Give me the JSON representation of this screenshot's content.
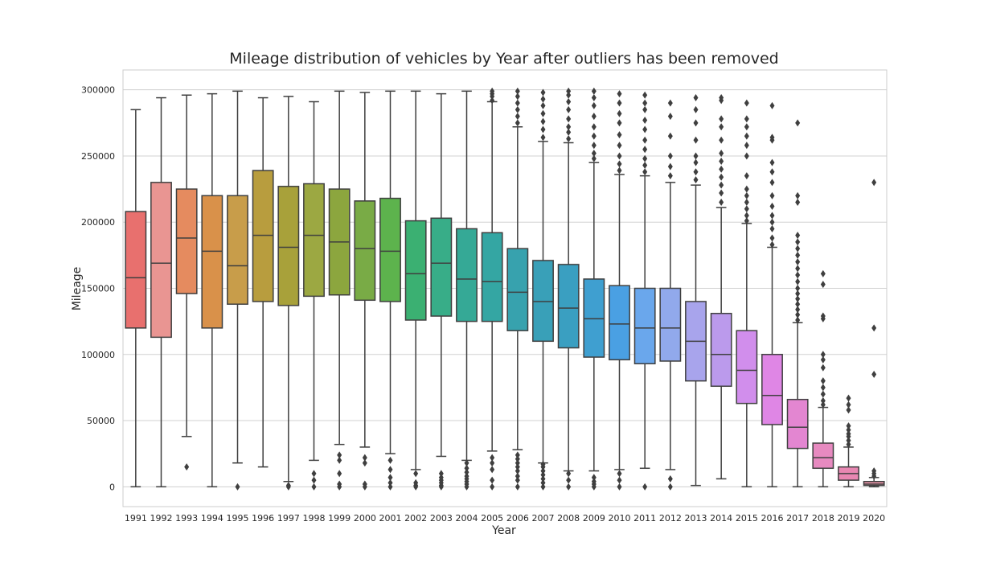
{
  "chart_data": {
    "type": "box",
    "title": "Mileage distribution of vehicles by Year after outliers has been removed",
    "xlabel": "Year",
    "ylabel": "Mileage",
    "ylim": [
      -15000,
      315000
    ],
    "yticks": [
      0,
      50000,
      100000,
      150000,
      200000,
      250000,
      300000
    ],
    "grid": "horizontal",
    "categories": [
      "1991",
      "1992",
      "1993",
      "1994",
      "1995",
      "1996",
      "1997",
      "1998",
      "1999",
      "2000",
      "2001",
      "2002",
      "2003",
      "2004",
      "2005",
      "2006",
      "2007",
      "2008",
      "2009",
      "2010",
      "2011",
      "2012",
      "2013",
      "2014",
      "2015",
      "2016",
      "2017",
      "2018",
      "2019",
      "2020"
    ],
    "colors": [
      "#e8706e",
      "#e99592",
      "#e58b5f",
      "#d9914a",
      "#c89d4a",
      "#b89d3e",
      "#a8a13a",
      "#9ca842",
      "#8ca63e",
      "#79ab46",
      "#5db34d",
      "#3bb072",
      "#38ad88",
      "#35a996",
      "#34a6a3",
      "#37a2ae",
      "#39a0b8",
      "#3a9fc1",
      "#3f9fd0",
      "#4aa0e3",
      "#6aa7ec",
      "#91a9ec",
      "#a8a4ec",
      "#bb9aec",
      "#d18eec",
      "#df86e5",
      "#e386d1",
      "#e78ac0",
      "#e887b2",
      "#e894a8"
    ],
    "boxes": [
      {
        "year": "1991",
        "whisker_low": 0,
        "q1": 120000,
        "median": 158000,
        "q3": 208000,
        "whisker_high": 285000,
        "outliers": []
      },
      {
        "year": "1992",
        "whisker_low": 0,
        "q1": 113000,
        "median": 169000,
        "q3": 230000,
        "whisker_high": 294000,
        "outliers": []
      },
      {
        "year": "1993",
        "whisker_low": 38000,
        "q1": 146000,
        "median": 188000,
        "q3": 225000,
        "whisker_high": 296000,
        "outliers": [
          15000
        ]
      },
      {
        "year": "1994",
        "whisker_low": 0,
        "q1": 120000,
        "median": 178000,
        "q3": 220000,
        "whisker_high": 297000,
        "outliers": []
      },
      {
        "year": "1995",
        "whisker_low": 18000,
        "q1": 138000,
        "median": 167000,
        "q3": 220000,
        "whisker_high": 299000,
        "outliers": [
          0
        ]
      },
      {
        "year": "1996",
        "whisker_low": 15000,
        "q1": 140000,
        "median": 190000,
        "q3": 239000,
        "whisker_high": 294000,
        "outliers": []
      },
      {
        "year": "1997",
        "whisker_low": 4000,
        "q1": 137000,
        "median": 181000,
        "q3": 227000,
        "whisker_high": 295000,
        "outliers": [
          0,
          1000
        ]
      },
      {
        "year": "1998",
        "whisker_low": 20000,
        "q1": 144000,
        "median": 190000,
        "q3": 229000,
        "whisker_high": 291000,
        "outliers": [
          0,
          5000,
          10000
        ]
      },
      {
        "year": "1999",
        "whisker_low": 32000,
        "q1": 145000,
        "median": 185000,
        "q3": 225000,
        "whisker_high": 299000,
        "outliers": [
          0,
          2000,
          10000,
          20000,
          24000
        ]
      },
      {
        "year": "2000",
        "whisker_low": 30000,
        "q1": 141000,
        "median": 180000,
        "q3": 216000,
        "whisker_high": 298000,
        "outliers": [
          0,
          2000,
          18000,
          22000
        ]
      },
      {
        "year": "2001",
        "whisker_low": 25000,
        "q1": 140000,
        "median": 178000,
        "q3": 218000,
        "whisker_high": 299000,
        "outliers": [
          0,
          3000,
          7000,
          13000,
          20000
        ]
      },
      {
        "year": "2002",
        "whisker_low": 13000,
        "q1": 126000,
        "median": 161000,
        "q3": 201000,
        "whisker_high": 299000,
        "outliers": [
          0,
          1000,
          3000,
          10000
        ]
      },
      {
        "year": "2003",
        "whisker_low": 23000,
        "q1": 129000,
        "median": 169000,
        "q3": 203000,
        "whisker_high": 297000,
        "outliers": [
          0,
          1000,
          3000,
          5000,
          7000,
          10000
        ]
      },
      {
        "year": "2004",
        "whisker_low": 20000,
        "q1": 125000,
        "median": 157000,
        "q3": 195000,
        "whisker_high": 299000,
        "outliers": [
          0,
          2000,
          4000,
          6000,
          8000,
          11000,
          14000,
          18000
        ]
      },
      {
        "year": "2005",
        "whisker_low": 27000,
        "q1": 125000,
        "median": 155000,
        "q3": 192000,
        "whisker_high": 291000,
        "outliers": [
          0,
          5000,
          13000,
          18000,
          22000,
          292000,
          295000,
          297000,
          299000
        ]
      },
      {
        "year": "2006",
        "whisker_low": 28000,
        "q1": 118000,
        "median": 147000,
        "q3": 180000,
        "whisker_high": 272000,
        "outliers": [
          0,
          5000,
          8000,
          12000,
          15000,
          18000,
          21000,
          24000,
          275000,
          280000,
          285000,
          290000,
          295000,
          299000
        ]
      },
      {
        "year": "2007",
        "whisker_low": 18000,
        "q1": 110000,
        "median": 140000,
        "q3": 171000,
        "whisker_high": 261000,
        "outliers": [
          0,
          3000,
          6000,
          9000,
          12000,
          15000,
          17000,
          264000,
          270000,
          276000,
          282000,
          288000,
          293000,
          298000
        ]
      },
      {
        "year": "2008",
        "whisker_low": 12000,
        "q1": 105000,
        "median": 135000,
        "q3": 168000,
        "whisker_high": 260000,
        "outliers": [
          0,
          5000,
          10000,
          263000,
          268000,
          272000,
          278000,
          285000,
          291000,
          296000,
          299000
        ]
      },
      {
        "year": "2009",
        "whisker_low": 12000,
        "q1": 98000,
        "median": 127000,
        "q3": 157000,
        "whisker_high": 245000,
        "outliers": [
          0,
          2000,
          4000,
          7000,
          248000,
          252000,
          258000,
          265000,
          272000,
          280000,
          288000,
          294000,
          299000
        ]
      },
      {
        "year": "2010",
        "whisker_low": 13000,
        "q1": 96000,
        "median": 123000,
        "q3": 152000,
        "whisker_high": 236000,
        "outliers": [
          0,
          5000,
          10000,
          239000,
          244000,
          250000,
          258000,
          266000,
          275000,
          282000,
          290000,
          297000
        ]
      },
      {
        "year": "2011",
        "whisker_low": 14000,
        "q1": 93000,
        "median": 120000,
        "q3": 150000,
        "whisker_high": 235000,
        "outliers": [
          0,
          238000,
          243000,
          248000,
          255000,
          262000,
          270000,
          277000,
          285000,
          290000,
          296000
        ]
      },
      {
        "year": "2012",
        "whisker_low": 13000,
        "q1": 95000,
        "median": 120000,
        "q3": 150000,
        "whisker_high": 230000,
        "outliers": [
          0,
          6000,
          235000,
          242000,
          250000,
          265000,
          280000,
          290000
        ]
      },
      {
        "year": "2013",
        "whisker_low": 1000,
        "q1": 80000,
        "median": 110000,
        "q3": 140000,
        "whisker_high": 228000,
        "outliers": [
          232000,
          238000,
          245000,
          250000,
          262000,
          275000,
          285000,
          294000
        ]
      },
      {
        "year": "2014",
        "whisker_low": 6000,
        "q1": 76000,
        "median": 100000,
        "q3": 131000,
        "whisker_high": 211000,
        "outliers": [
          215000,
          222000,
          228000,
          234000,
          240000,
          246000,
          252000,
          262000,
          272000,
          278000,
          292000,
          294000
        ]
      },
      {
        "year": "2015",
        "whisker_low": 0,
        "q1": 63000,
        "median": 88000,
        "q3": 118000,
        "whisker_high": 199000,
        "outliers": [
          201000,
          205000,
          210000,
          215000,
          220000,
          225000,
          235000,
          250000,
          258000,
          265000,
          272000,
          278000,
          290000
        ]
      },
      {
        "year": "2016",
        "whisker_low": 0,
        "q1": 47000,
        "median": 69000,
        "q3": 100000,
        "whisker_high": 181000,
        "outliers": [
          183000,
          188000,
          195000,
          200000,
          205000,
          212000,
          220000,
          230000,
          238000,
          245000,
          262000,
          264000,
          288000
        ]
      },
      {
        "year": "2017",
        "whisker_low": 0,
        "q1": 29000,
        "median": 45000,
        "q3": 66000,
        "whisker_high": 124000,
        "outliers": [
          126000,
          130000,
          134000,
          138000,
          142000,
          146000,
          150000,
          155000,
          160000,
          165000,
          170000,
          175000,
          180000,
          185000,
          190000,
          215000,
          220000,
          275000
        ]
      },
      {
        "year": "2018",
        "whisker_low": 0,
        "q1": 14000,
        "median": 22000,
        "q3": 33000,
        "whisker_high": 60000,
        "outliers": [
          62000,
          65000,
          70000,
          75000,
          80000,
          90000,
          96000,
          100000,
          127000,
          129000,
          153000,
          161000
        ]
      },
      {
        "year": "2019",
        "whisker_low": 0,
        "q1": 5000,
        "median": 10000,
        "q3": 15000,
        "whisker_high": 30000,
        "outliers": [
          32000,
          35000,
          38000,
          40000,
          43000,
          46000,
          58000,
          62000,
          67000
        ]
      },
      {
        "year": "2020",
        "whisker_low": 0,
        "q1": 1000,
        "median": 2000,
        "q3": 4000,
        "whisker_high": 7000,
        "outliers": [
          8000,
          10000,
          12000,
          85000,
          120000,
          230000
        ]
      }
    ]
  }
}
